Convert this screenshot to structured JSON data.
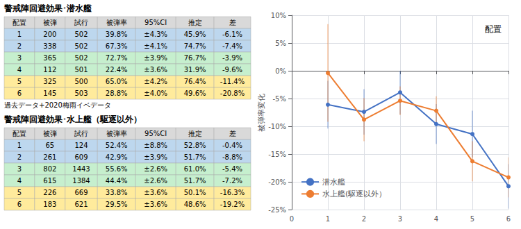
{
  "chart_data": [
    {
      "type": "table",
      "title": "警戒陣回避効果･潜水艦",
      "columns": [
        "配置",
        "被弾",
        "試行",
        "被弾率",
        "95%CI",
        "推定",
        "差"
      ],
      "rows": [
        [
          "1",
          "200",
          "502",
          "39.8%",
          "±4.3%",
          "45.9%",
          "-6.1%"
        ],
        [
          "2",
          "338",
          "502",
          "67.3%",
          "±4.1%",
          "74.7%",
          "-7.4%"
        ],
        [
          "3",
          "365",
          "502",
          "72.7%",
          "±3.9%",
          "76.7%",
          "-3.9%"
        ],
        [
          "4",
          "112",
          "501",
          "22.4%",
          "±3.6%",
          "31.9%",
          "-9.6%"
        ],
        [
          "5",
          "325",
          "500",
          "65.0%",
          "±4.2%",
          "76.4%",
          "-11.4%"
        ],
        [
          "6",
          "145",
          "503",
          "28.8%",
          "±4.0%",
          "49.6%",
          "-20.8%"
        ]
      ],
      "colors": [
        "#bdd7ee",
        "#bdd7ee",
        "#c6efce",
        "#c6efce",
        "#ffeb9c",
        "#ffeb9c"
      ],
      "annotations": [
        "過去データ+2020梅雨イベデータ"
      ]
    },
    {
      "type": "table",
      "title": "警戒陣回避効果･水上艦（駆逐以外）",
      "columns": [
        "配置",
        "被弾",
        "試行",
        "被弾率",
        "95%CI",
        "推定",
        "差"
      ],
      "rows": [
        [
          "1",
          "65",
          "124",
          "52.4%",
          "±8.8%",
          "52.8%",
          "-0.4%"
        ],
        [
          "2",
          "261",
          "609",
          "42.9%",
          "±3.9%",
          "51.7%",
          "-8.8%"
        ],
        [
          "3",
          "802",
          "1443",
          "55.6%",
          "±2.6%",
          "61.0%",
          "-5.4%"
        ],
        [
          "4",
          "615",
          "1384",
          "44.4%",
          "±2.6%",
          "51.7%",
          "-7.2%"
        ],
        [
          "5",
          "226",
          "669",
          "33.8%",
          "±3.6%",
          "50.1%",
          "-16.3%"
        ],
        [
          "6",
          "183",
          "621",
          "29.5%",
          "±3.6%",
          "48.6%",
          "-19.2%"
        ]
      ],
      "colors": [
        "#bdd7ee",
        "#bdd7ee",
        "#c6efce",
        "#c6efce",
        "#ffeb9c",
        "#ffeb9c"
      ]
    },
    {
      "type": "line",
      "x": [
        1,
        2,
        3,
        4,
        5,
        6
      ],
      "series": [
        {
          "name": "潜水艦",
          "color": "#4472c4",
          "values": [
            -6.1,
            -7.4,
            -3.9,
            -9.6,
            -11.4,
            -20.8
          ],
          "errors": [
            4.3,
            4.1,
            3.9,
            3.6,
            4.2,
            4.0
          ]
        },
        {
          "name": "水上艦(駆逐以外）",
          "color": "#ed7d31",
          "values": [
            -0.4,
            -8.8,
            -5.4,
            -7.2,
            -16.3,
            -19.2
          ],
          "errors": [
            8.8,
            3.9,
            2.6,
            2.6,
            3.6,
            3.6
          ]
        }
      ],
      "ylabel": "被弾率変化",
      "annotations": [
        "配置"
      ],
      "xlim": [
        0,
        6
      ],
      "xticks": [
        0,
        1,
        2,
        3,
        4,
        5,
        6
      ],
      "ylim": [
        -25,
        10
      ],
      "yticks": [
        {
          "value": 10,
          "label": "10%"
        },
        {
          "value": 5,
          "label": "5%"
        },
        {
          "value": 0,
          "label": "0%"
        },
        {
          "value": -5,
          "label": "-5%"
        },
        {
          "value": -10,
          "label": "-10%"
        },
        {
          "value": -15,
          "label": "-15%"
        },
        {
          "value": -20,
          "label": "-20%"
        },
        {
          "value": -25,
          "label": "-25%"
        }
      ],
      "grid": true,
      "legend": "lower left",
      "marker": "circle"
    }
  ]
}
